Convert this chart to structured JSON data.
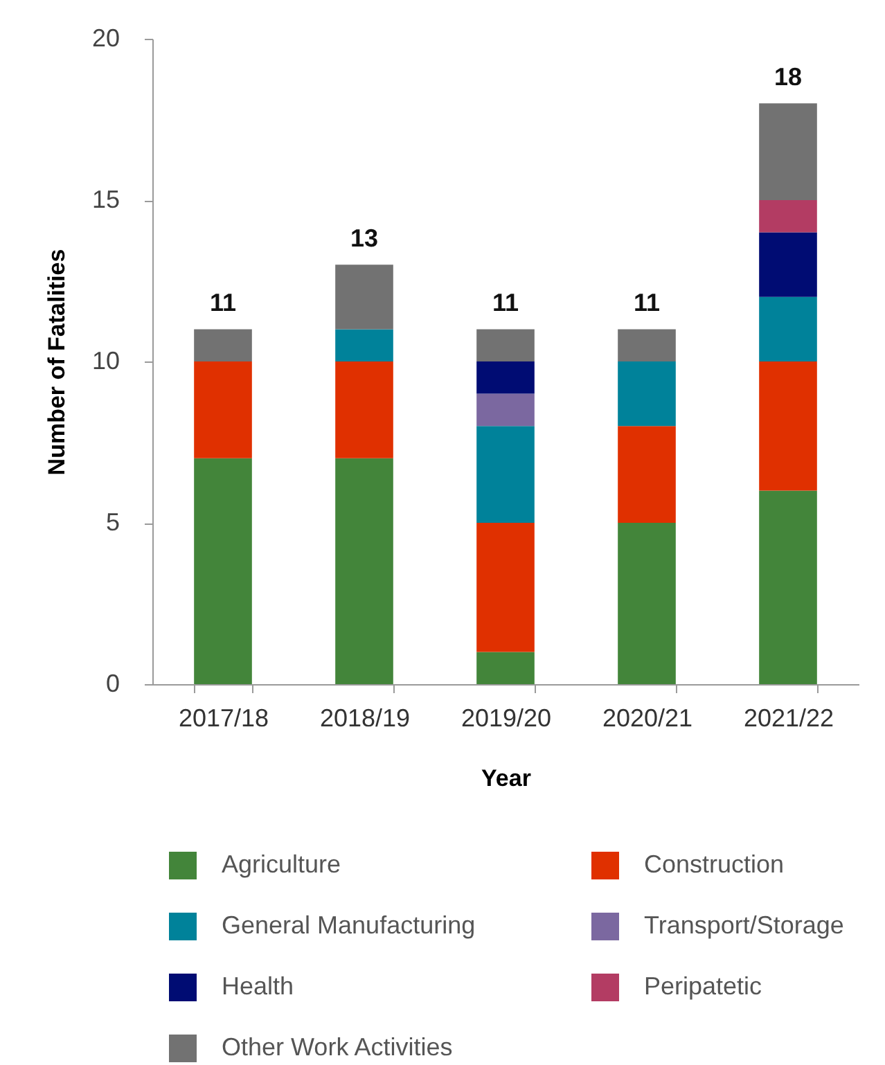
{
  "chart_data": {
    "type": "bar",
    "stacked": true,
    "xlabel": "Year",
    "ylabel": "Number of Fatalities",
    "categories": [
      "2017/18",
      "2018/19",
      "2019/20",
      "2020/21",
      "2021/22"
    ],
    "series": [
      {
        "name": "Agriculture",
        "color": "#43853a",
        "values": [
          7,
          7,
          1,
          5,
          6
        ]
      },
      {
        "name": "Construction",
        "color": "#e03000",
        "values": [
          3,
          3,
          4,
          3,
          4
        ]
      },
      {
        "name": "General Manufacturing",
        "color": "#00829a",
        "values": [
          0,
          1,
          3,
          2,
          2
        ]
      },
      {
        "name": "Transport/Storage",
        "color": "#7b68a0",
        "values": [
          0,
          0,
          1,
          0,
          0
        ]
      },
      {
        "name": "Health",
        "color": "#000c73",
        "values": [
          0,
          0,
          1,
          0,
          2
        ]
      },
      {
        "name": "Peripatetic",
        "color": "#b33c63",
        "values": [
          0,
          0,
          0,
          0,
          1
        ]
      },
      {
        "name": "Other Work Activities",
        "color": "#727272",
        "values": [
          1,
          2,
          1,
          1,
          3
        ]
      }
    ],
    "ylim": [
      0,
      20
    ],
    "yticks": [
      0,
      5,
      10,
      15,
      20
    ],
    "grid": false,
    "legend": "bottom",
    "totals": [
      "11",
      "13",
      "11",
      "11",
      "18"
    ]
  }
}
